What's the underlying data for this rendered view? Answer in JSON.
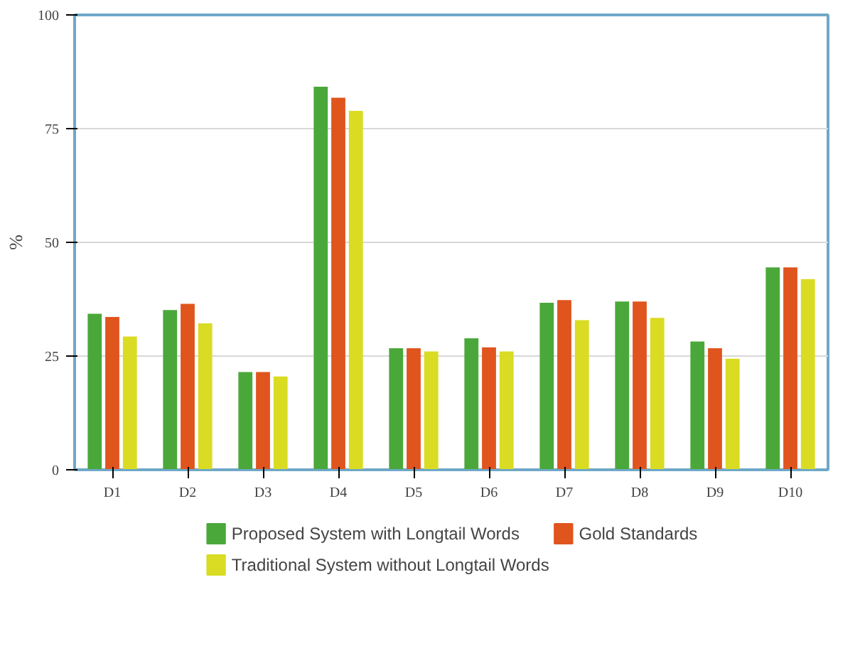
{
  "chart_data": {
    "type": "bar",
    "ylabel": "%",
    "categories": [
      "D1",
      "D2",
      "D3",
      "D4",
      "D5",
      "D6",
      "D7",
      "D8",
      "D9",
      "D10"
    ],
    "series": [
      {
        "name": "Proposed System with Longtail Words",
        "color": "#4aa83a",
        "values": [
          34.3,
          35.1,
          21.5,
          84.2,
          26.7,
          28.9,
          36.7,
          37.0,
          28.2,
          44.5
        ]
      },
      {
        "name": "Gold Standards",
        "color": "#e0541e",
        "values": [
          33.6,
          36.5,
          21.5,
          81.8,
          26.7,
          26.9,
          37.3,
          37.0,
          26.7,
          44.5
        ]
      },
      {
        "name": "Traditional System without Longtail Words",
        "color": "#d9dc22",
        "values": [
          29.3,
          32.2,
          20.5,
          78.9,
          26.0,
          26.0,
          32.9,
          33.4,
          24.4,
          41.9
        ]
      }
    ],
    "ylim": [
      0,
      100
    ],
    "yticks": [
      0,
      25,
      50,
      75,
      100
    ],
    "grid": "y",
    "legend": "bottom"
  }
}
